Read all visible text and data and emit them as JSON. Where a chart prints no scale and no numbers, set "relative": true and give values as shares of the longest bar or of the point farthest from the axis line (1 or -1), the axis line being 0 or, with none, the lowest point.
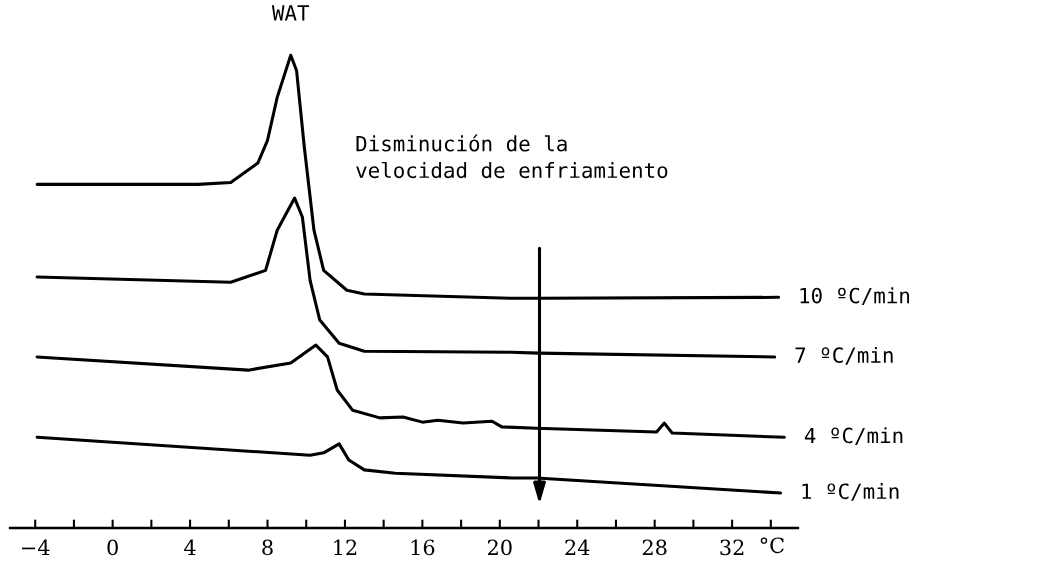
{
  "chart_data": {
    "type": "line",
    "relative": true,
    "xlabel": "°C",
    "xlim": [
      -5.3,
      35.4
    ],
    "xticks": [
      -4,
      {
        "value": -2,
        "label": null
      },
      0,
      {
        "value": 2,
        "label": null
      },
      4,
      {
        "value": 6,
        "label": null
      },
      8,
      {
        "value": 10,
        "label": null
      },
      12,
      {
        "value": 14,
        "label": null
      },
      16,
      {
        "value": 18,
        "label": null
      },
      20,
      {
        "value": 22,
        "label": null
      },
      24,
      {
        "value": 26,
        "label": null
      },
      28,
      {
        "value": 30,
        "label": null
      },
      32,
      {
        "value": 34,
        "label": null
      }
    ],
    "grid": false,
    "legend": false,
    "marker": "none",
    "line_style": "solid",
    "tick_labels": "x",
    "annotations": [
      {
        "text": "WAT",
        "x": 9.2,
        "y": 1.0
      },
      "Disminución de la\nvelocidad de enfriamiento"
    ],
    "series": [
      {
        "name": "10 ºC/min",
        "color": "#000000",
        "x": [
          -3.9,
          4.4,
          6.1,
          7.5,
          8.0,
          8.5,
          9.2,
          9.5,
          9.9,
          10.4,
          10.9,
          12.1,
          13.0,
          20.6,
          22.0,
          34.4
        ],
        "values": [
          0.727,
          0.727,
          0.731,
          0.772,
          0.82,
          0.911,
          1.0,
          0.968,
          0.806,
          0.63,
          0.545,
          0.503,
          0.495,
          0.486,
          0.486,
          0.488
        ]
      },
      {
        "name": "7 ºC/min",
        "color": "#000000",
        "x": [
          -3.9,
          6.1,
          7.9,
          8.5,
          9.4,
          9.8,
          10.2,
          10.7,
          11.7,
          13.0,
          20.6,
          22.0,
          34.2
        ],
        "values": [
          0.531,
          0.52,
          0.545,
          0.63,
          0.698,
          0.658,
          0.524,
          0.44,
          0.391,
          0.374,
          0.372,
          0.37,
          0.362
        ]
      },
      {
        "name": "4 ºC/min",
        "color": "#000000",
        "x": [
          -3.9,
          7.0,
          9.2,
          10.5,
          11.1,
          11.6,
          12.4,
          13.8,
          15.0,
          16.0,
          16.8,
          18.1,
          19.6,
          20.1,
          21.9,
          28.1,
          28.5,
          28.9,
          34.7
        ],
        "values": [
          0.362,
          0.334,
          0.349,
          0.387,
          0.362,
          0.292,
          0.249,
          0.233,
          0.235,
          0.224,
          0.228,
          0.222,
          0.226,
          0.214,
          0.211,
          0.203,
          0.222,
          0.201,
          0.192
        ]
      },
      {
        "name": "1 ºC/min",
        "color": "#000000",
        "x": [
          -3.9,
          10.2,
          10.9,
          11.7,
          12.2,
          13.0,
          14.6,
          20.6,
          21.9,
          34.5
        ],
        "values": [
          0.192,
          0.154,
          0.159,
          0.178,
          0.144,
          0.123,
          0.116,
          0.106,
          0.106,
          0.074
        ]
      }
    ]
  }
}
